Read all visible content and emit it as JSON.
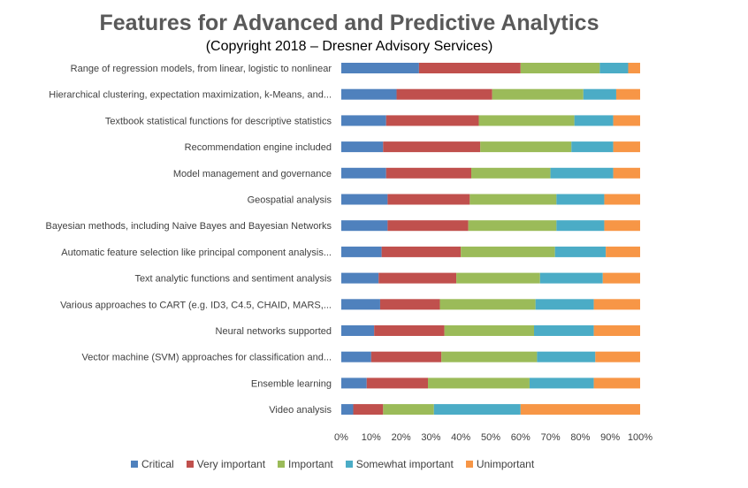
{
  "chart_data": {
    "type": "bar",
    "orientation": "horizontal",
    "stacked": true,
    "title": "Features for Advanced and Predictive Analytics",
    "subtitle": "(Copyright 2018 – Dresner Advisory Services)",
    "categories": [
      "Range of regression models, from linear, logistic to nonlinear",
      "Hierarchical clustering, expectation maximization, k-Means, and...",
      "Textbook statistical functions for descriptive statistics",
      "Recommendation engine included",
      "Model management and governance",
      "Geospatial analysis",
      "Bayesian methods, including Naive Bayes and Bayesian Networks",
      "Automatic feature selection like principal component analysis...",
      "Text analytic functions and sentiment analysis",
      "Various approaches to CART (e.g. ID3, C4.5, CHAID, MARS,...",
      "Neural networks supported",
      "Vector machine (SVM) approaches for classification and...",
      "Ensemble learning",
      "Video analysis"
    ],
    "series": [
      {
        "name": "Critical",
        "color": "#4f81bd",
        "values": [
          26,
          18.5,
          15,
          14,
          15,
          15.5,
          15.5,
          13.5,
          12.5,
          13,
          11,
          10,
          8.5,
          4
        ]
      },
      {
        "name": "Very important",
        "color": "#c0504d",
        "values": [
          34,
          32,
          31,
          32.5,
          28.5,
          27.5,
          27,
          26.5,
          26,
          20,
          23.5,
          23.5,
          20.5,
          10
        ]
      },
      {
        "name": "Important",
        "color": "#9bbb59",
        "values": [
          26.5,
          30.5,
          32,
          30.5,
          26.5,
          29,
          29.5,
          31.5,
          28,
          32,
          30,
          32,
          34,
          17
        ]
      },
      {
        "name": "Somewhat important",
        "color": "#4bacc6",
        "values": [
          9.5,
          11,
          13,
          14,
          21,
          16,
          16,
          17,
          21,
          19.5,
          20,
          19.5,
          21.5,
          29
        ]
      },
      {
        "name": "Unimportant",
        "color": "#f79646",
        "values": [
          4,
          8,
          9,
          9,
          9,
          12,
          12,
          11.5,
          12.5,
          15.5,
          15.5,
          15,
          15.5,
          40
        ]
      }
    ],
    "xlim": [
      0,
      100
    ],
    "x_ticks": [
      "0%",
      "10%",
      "20%",
      "30%",
      "40%",
      "50%",
      "60%",
      "70%",
      "80%",
      "90%",
      "100%"
    ],
    "grid": false,
    "legend_position": "bottom"
  }
}
